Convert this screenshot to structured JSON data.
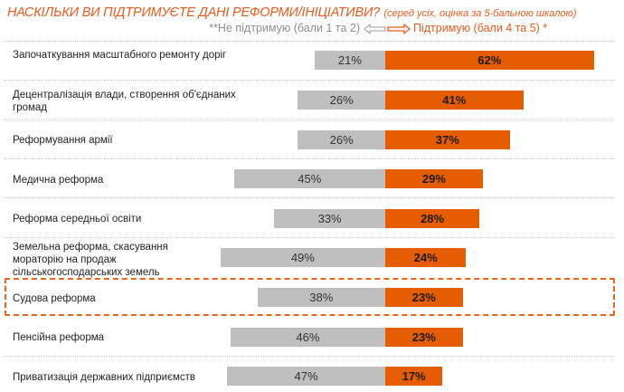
{
  "header": {
    "title": "НАСКІЛЬКИ ВИ  ПІДТРИМУЄТЕ ДАНІ РЕФОРМИ/ІНІЦІАТИВИ?",
    "subtitle": "(серед усіх, оцінка за 5-бальною шкалою)",
    "legend_negative": "**Не підтримую (бали 1 та 2)",
    "legend_positive": "Підтримую (бали 4 та 5) *",
    "arrow_icon": "double-arrow-left-right"
  },
  "colors": {
    "support": "#E65C00",
    "not_support": "#BFBFBF",
    "accent": "#E8591A",
    "highlight_border": "#E8641A"
  },
  "highlighted_item": "Судова реформа",
  "chart_data": {
    "type": "bar",
    "orientation": "horizontal-diverging",
    "title": "НАСКІЛЬКИ ВИ  ПІДТРИМУЄТЕ ДАНІ РЕФОРМИ/ІНІЦІАТИВИ?",
    "subtitle": "(серед усіх, оцінка за 5-бальною шкалою)",
    "unit": "%",
    "categories": [
      "Започаткування масштабного ремонту доріг",
      "Децентралізація  влади, створення об'єднаних громад",
      "Реформування армії",
      "Медична реформа",
      "Реформа середньої освіти",
      "Земельна реформа, скасування мораторію на продаж сільськогосподарських земель",
      "Судова реформа",
      "Пенсійна реформа",
      "Приватизація державних підприємств"
    ],
    "series": [
      {
        "name": "**Не підтримую (бали 1 та 2)",
        "direction": "left",
        "values": [
          21,
          26,
          26,
          45,
          33,
          49,
          38,
          46,
          47
        ],
        "labels": [
          "21%",
          "26%",
          "26%",
          "45%",
          "33%",
          "49%",
          "38%",
          "46%",
          "47%"
        ]
      },
      {
        "name": "Підтримую (бали 4 та 5) *",
        "direction": "right",
        "values": [
          62,
          41,
          37,
          29,
          28,
          24,
          23,
          23,
          17
        ],
        "labels": [
          "62%",
          "41%",
          "37%",
          "29%",
          "28%",
          "24%",
          "23%",
          "23%",
          "17%"
        ]
      }
    ],
    "xlim": [
      -50,
      65
    ],
    "grid": false,
    "legend": "top-right"
  }
}
